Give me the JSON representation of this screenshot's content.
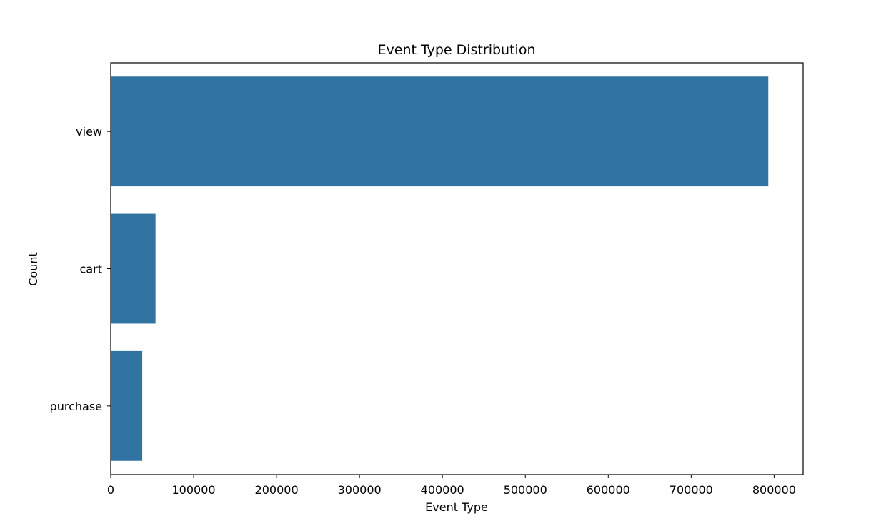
{
  "chart_data": {
    "type": "bar",
    "orientation": "horizontal",
    "title": "Event Type Distribution",
    "xlabel": "Event Type",
    "ylabel": "Count",
    "categories": [
      "view",
      "cart",
      "purchase"
    ],
    "values": [
      793000,
      54000,
      38000
    ],
    "xlim": [
      0,
      835000
    ],
    "xticks": [
      0,
      100000,
      200000,
      300000,
      400000,
      500000,
      600000,
      700000,
      800000
    ],
    "xtick_labels": [
      "0",
      "100000",
      "200000",
      "300000",
      "400000",
      "500000",
      "600000",
      "700000",
      "800000"
    ],
    "grid": false,
    "legend": "none",
    "bar_color": "#3274a1"
  }
}
